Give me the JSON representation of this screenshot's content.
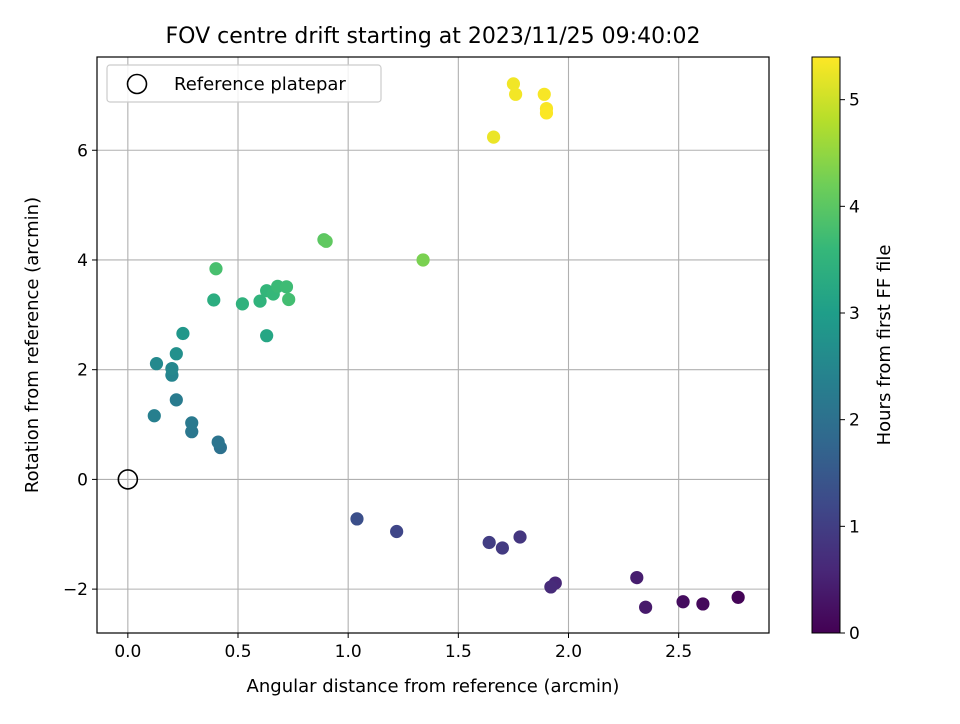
{
  "chart_data": {
    "type": "scatter",
    "title": "FOV centre drift starting at 2023/11/25 09:40:02",
    "xlabel": "Angular distance from reference (arcmin)",
    "ylabel": "Rotation from reference (arcmin)",
    "xlim": [
      -0.14,
      2.91
    ],
    "ylim": [
      -2.8,
      7.7
    ],
    "x_ticks": [
      0.0,
      0.5,
      1.0,
      1.5,
      2.0,
      2.5
    ],
    "x_tick_labels": [
      "0.0",
      "0.5",
      "1.0",
      "1.5",
      "2.0",
      "2.5"
    ],
    "y_ticks": [
      -2,
      0,
      2,
      4,
      6
    ],
    "y_tick_labels": [
      "−2",
      "0",
      "2",
      "4",
      "6"
    ],
    "grid": true,
    "colormap": "viridis",
    "colorbar": {
      "label": "Hours from first FF file",
      "range": [
        0,
        5.4
      ],
      "ticks": [
        0,
        1,
        2,
        3,
        4,
        5
      ],
      "tick_labels": [
        "0",
        "1",
        "2",
        "3",
        "4",
        "5"
      ]
    },
    "legend": {
      "position": "top-left",
      "entries": [
        {
          "label": "Reference platepar",
          "marker": "open-circle",
          "color": "#000000"
        }
      ]
    },
    "reference_point": {
      "x": 0.0,
      "y": 0.0
    },
    "points": [
      {
        "x": 2.77,
        "y": -2.15,
        "c": 0.05
      },
      {
        "x": 2.61,
        "y": -2.27,
        "c": 0.12
      },
      {
        "x": 2.52,
        "y": -2.23,
        "c": 0.18
      },
      {
        "x": 2.35,
        "y": -2.33,
        "c": 0.38
      },
      {
        "x": 2.31,
        "y": -1.79,
        "c": 0.45
      },
      {
        "x": 1.94,
        "y": -1.89,
        "c": 0.6
      },
      {
        "x": 1.92,
        "y": -1.96,
        "c": 0.65
      },
      {
        "x": 1.78,
        "y": -1.05,
        "c": 0.85
      },
      {
        "x": 1.7,
        "y": -1.25,
        "c": 0.92
      },
      {
        "x": 1.64,
        "y": -1.15,
        "c": 0.98
      },
      {
        "x": 1.22,
        "y": -0.95,
        "c": 1.15
      },
      {
        "x": 1.04,
        "y": -0.72,
        "c": 1.32
      },
      {
        "x": 0.42,
        "y": 0.58,
        "c": 2.0
      },
      {
        "x": 0.41,
        "y": 0.68,
        "c": 2.08
      },
      {
        "x": 0.29,
        "y": 0.87,
        "c": 2.15
      },
      {
        "x": 0.29,
        "y": 1.03,
        "c": 2.2
      },
      {
        "x": 0.22,
        "y": 1.45,
        "c": 2.25
      },
      {
        "x": 0.12,
        "y": 1.16,
        "c": 2.32
      },
      {
        "x": 0.2,
        "y": 1.9,
        "c": 2.45
      },
      {
        "x": 0.2,
        "y": 2.02,
        "c": 2.5
      },
      {
        "x": 0.13,
        "y": 2.11,
        "c": 2.55
      },
      {
        "x": 0.22,
        "y": 2.29,
        "c": 2.7
      },
      {
        "x": 0.25,
        "y": 2.66,
        "c": 2.85
      },
      {
        "x": 0.63,
        "y": 2.62,
        "c": 3.2
      },
      {
        "x": 0.39,
        "y": 3.27,
        "c": 3.35
      },
      {
        "x": 0.52,
        "y": 3.2,
        "c": 3.45
      },
      {
        "x": 0.6,
        "y": 3.25,
        "c": 3.5
      },
      {
        "x": 0.63,
        "y": 3.44,
        "c": 3.55
      },
      {
        "x": 0.66,
        "y": 3.38,
        "c": 3.6
      },
      {
        "x": 0.68,
        "y": 3.52,
        "c": 3.65
      },
      {
        "x": 0.72,
        "y": 3.51,
        "c": 3.7
      },
      {
        "x": 0.73,
        "y": 3.28,
        "c": 3.75
      },
      {
        "x": 0.4,
        "y": 3.84,
        "c": 3.8
      },
      {
        "x": 0.89,
        "y": 4.37,
        "c": 4.0
      },
      {
        "x": 0.9,
        "y": 4.34,
        "c": 4.05
      },
      {
        "x": 1.34,
        "y": 4.0,
        "c": 4.3
      },
      {
        "x": 1.66,
        "y": 6.24,
        "c": 5.25
      },
      {
        "x": 1.75,
        "y": 7.21,
        "c": 5.3
      },
      {
        "x": 1.76,
        "y": 7.02,
        "c": 5.32
      },
      {
        "x": 1.89,
        "y": 7.02,
        "c": 5.35
      },
      {
        "x": 1.9,
        "y": 6.76,
        "c": 5.36
      },
      {
        "x": 1.9,
        "y": 6.68,
        "c": 5.38
      }
    ]
  }
}
